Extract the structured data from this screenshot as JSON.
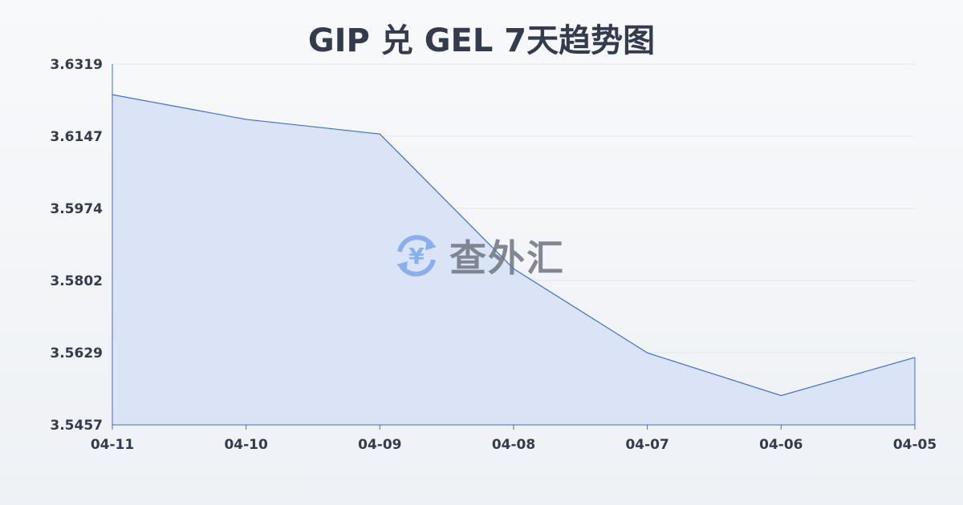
{
  "chart_data": {
    "type": "area",
    "title": "GIP 兑 GEL 7天趋势图",
    "categories": [
      "04-11",
      "04-10",
      "04-09",
      "04-08",
      "04-07",
      "04-06",
      "04-05"
    ],
    "series": [
      {
        "values": [
          3.6246,
          3.6187,
          3.6152,
          3.583,
          3.5629,
          3.5527,
          3.5618
        ]
      }
    ],
    "yticks": [
      "3.6319",
      "3.6147",
      "3.5974",
      "3.5802",
      "3.5629",
      "3.5457"
    ],
    "ylim": [
      3.5457,
      3.6319
    ],
    "grid": true,
    "colors": {
      "line": "#3a6fd8",
      "fill": "#d6e1f6",
      "watermark_icon": "#7aa7ef",
      "text": "#333c4e"
    }
  },
  "watermark": {
    "text": "查外汇",
    "icon": "yen-exchange-icon"
  }
}
